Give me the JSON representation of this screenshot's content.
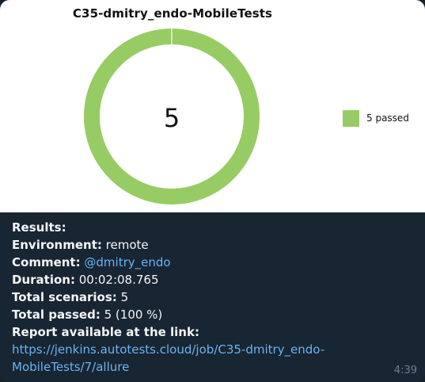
{
  "message": {
    "time": "4:39",
    "chart_image": {
      "title": "C35-dmitry_endo-MobileTests",
      "center_value": "5",
      "legend_label": "5 passed",
      "colors": {
        "passed": "#97cc64",
        "background": "#ffffff"
      }
    },
    "results": {
      "heading": "Results:",
      "environment_label": "Environment:",
      "environment_value": "remote",
      "comment_label": "Comment:",
      "comment_value": "@dmitry_endo",
      "duration_label": "Duration:",
      "duration_value": "00:02:08.765",
      "total_scenarios_label": "Total scenarios:",
      "total_scenarios_value": "5",
      "total_passed_label": "Total passed:",
      "total_passed_value": "5 (100 %)",
      "report_label": "Report available at the link:",
      "report_link_line1": "https://jenkins.autotests.cloud/job/C35-dmitry_endo-",
      "report_link_line2": "MobileTests/7/allure"
    }
  },
  "chart_data": {
    "type": "pie",
    "title": "C35-dmitry_endo-MobileTests",
    "categories": [
      "passed"
    ],
    "values": [
      5
    ],
    "legend": [
      "5 passed"
    ],
    "legend_position": "right",
    "colors": [
      "#97cc64"
    ],
    "center_label": "5"
  }
}
